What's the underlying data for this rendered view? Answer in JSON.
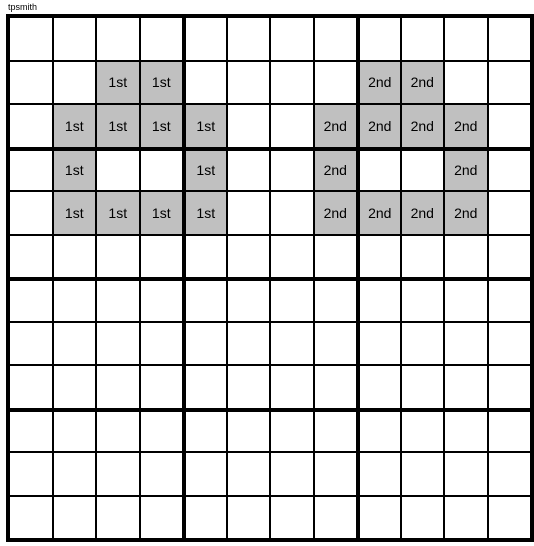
{
  "credit": "tpsmith",
  "grid": {
    "rows": 12,
    "cols": 12,
    "cell_size": 43.5,
    "shaded_color": "#c0c0c0",
    "bg_color": "#ffffff",
    "label_1": "1st",
    "label_2": "2nd",
    "thick_row_indices": [
      3,
      6,
      9
    ],
    "thick_col_indices": [
      4,
      8
    ],
    "cells": [
      {
        "r": 1,
        "c": 2,
        "t": "1st"
      },
      {
        "r": 1,
        "c": 3,
        "t": "1st"
      },
      {
        "r": 1,
        "c": 8,
        "t": "2nd"
      },
      {
        "r": 1,
        "c": 9,
        "t": "2nd"
      },
      {
        "r": 2,
        "c": 1,
        "t": "1st"
      },
      {
        "r": 2,
        "c": 2,
        "t": "1st"
      },
      {
        "r": 2,
        "c": 3,
        "t": "1st"
      },
      {
        "r": 2,
        "c": 4,
        "t": "1st"
      },
      {
        "r": 2,
        "c": 7,
        "t": "2nd"
      },
      {
        "r": 2,
        "c": 8,
        "t": "2nd"
      },
      {
        "r": 2,
        "c": 9,
        "t": "2nd"
      },
      {
        "r": 2,
        "c": 10,
        "t": "2nd"
      },
      {
        "r": 3,
        "c": 1,
        "t": "1st"
      },
      {
        "r": 3,
        "c": 4,
        "t": "1st"
      },
      {
        "r": 3,
        "c": 7,
        "t": "2nd"
      },
      {
        "r": 3,
        "c": 10,
        "t": "2nd"
      },
      {
        "r": 4,
        "c": 1,
        "t": "1st"
      },
      {
        "r": 4,
        "c": 2,
        "t": "1st"
      },
      {
        "r": 4,
        "c": 3,
        "t": "1st"
      },
      {
        "r": 4,
        "c": 4,
        "t": "1st"
      },
      {
        "r": 4,
        "c": 7,
        "t": "2nd"
      },
      {
        "r": 4,
        "c": 8,
        "t": "2nd"
      },
      {
        "r": 4,
        "c": 9,
        "t": "2nd"
      },
      {
        "r": 4,
        "c": 10,
        "t": "2nd"
      }
    ]
  }
}
